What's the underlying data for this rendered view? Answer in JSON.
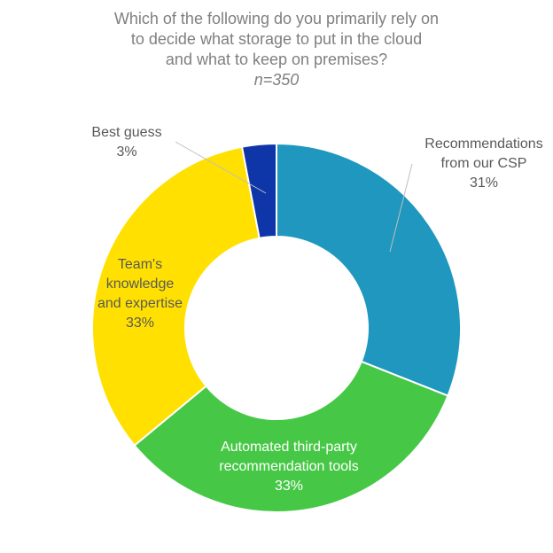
{
  "chart_data": {
    "type": "pie",
    "donut": true,
    "title": "Which of the following do you primarily rely on to decide what storage to put in the cloud and what to keep on premises?",
    "title_lines": [
      "Which of the following do you primarily rely on",
      "to decide what storage to put in the cloud",
      "and what to keep on premises?"
    ],
    "subtitle": "n=350",
    "slices": [
      {
        "label_lines": [
          "Recommendations",
          "from our CSP"
        ],
        "value": 31,
        "value_label": "31%",
        "color": "#1f97bf"
      },
      {
        "label_lines": [
          "Automated third-party",
          "recommendation tools"
        ],
        "value": 33,
        "value_label": "33%",
        "color": "#46c846"
      },
      {
        "label_lines": [
          "Team's",
          "knowledge",
          "and expertise"
        ],
        "value": 33,
        "value_label": "33%",
        "color": "#ffe000"
      },
      {
        "label_lines": [
          "Best guess"
        ],
        "value": 3,
        "value_label": "3%",
        "color": "#0f36a8"
      }
    ],
    "start_angle_deg": 0,
    "direction": "clockwise",
    "legend": "none"
  }
}
